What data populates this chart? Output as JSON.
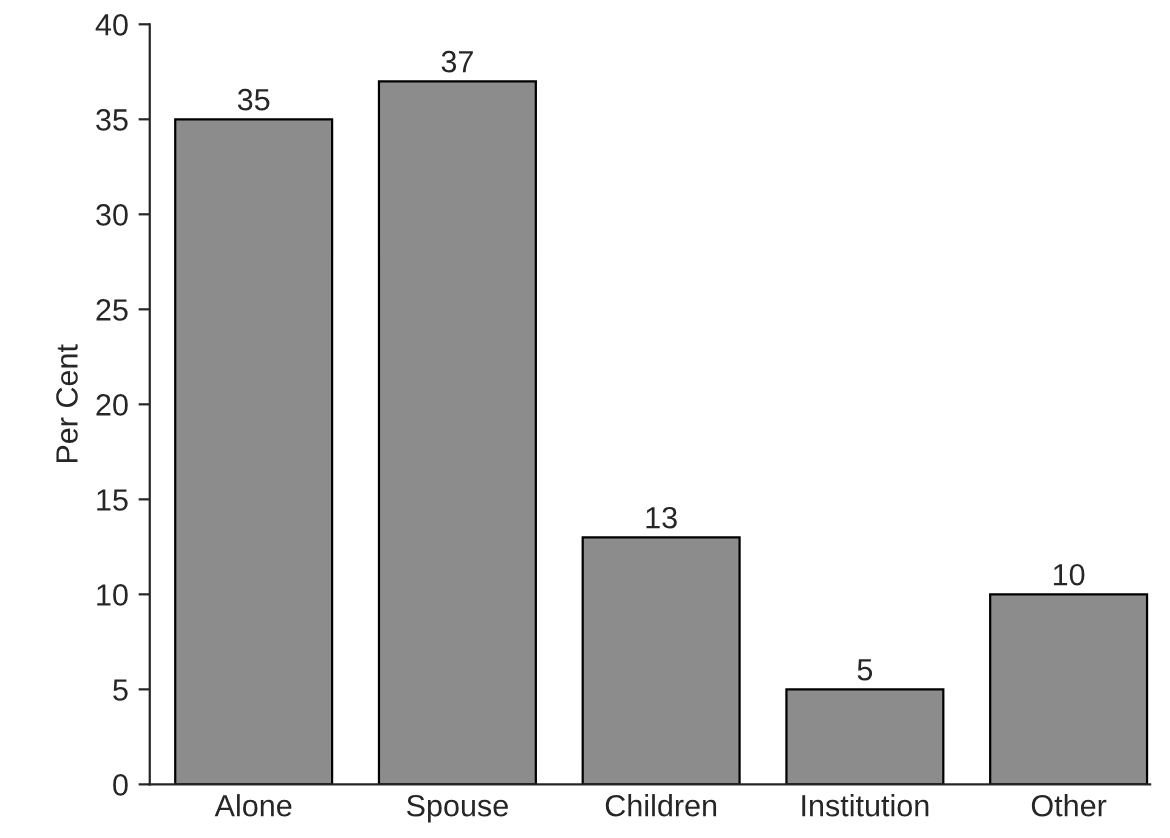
{
  "chart_data": {
    "type": "bar",
    "ylabel": "Per Cent",
    "categories": [
      "Alone",
      "Spouse",
      "Children",
      "Institution",
      "Other"
    ],
    "values": [
      35,
      37,
      13,
      5,
      10
    ],
    "color": "#8c8c8c",
    "ylim": [
      0,
      40
    ],
    "yticks": [
      0,
      5,
      10,
      15,
      20,
      25,
      30,
      35,
      40
    ],
    "data_labels": true,
    "grid": false,
    "legend": false
  }
}
